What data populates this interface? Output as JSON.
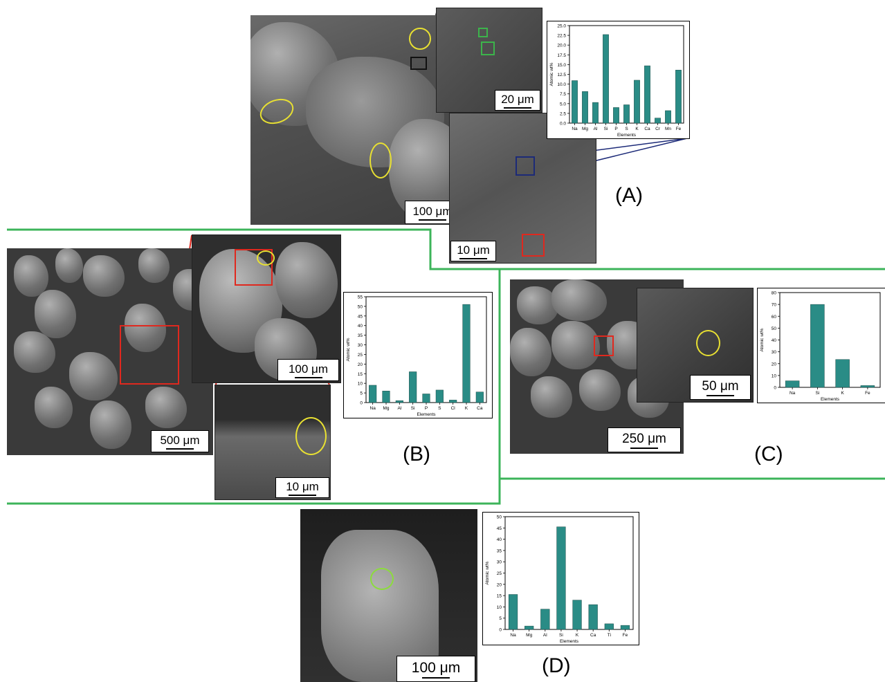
{
  "panels": {
    "a": {
      "label": "(A)",
      "scale_main": "100 μm",
      "scale_inset1": "20 μm",
      "scale_inset2": "10 μm"
    },
    "b": {
      "label": "(B)",
      "scale_main": "500 μm",
      "scale_inset1": "100 μm",
      "scale_inset2": "10 μm"
    },
    "c": {
      "label": "(C)",
      "scale_main": "250 μm",
      "scale_inset1": "50 μm"
    },
    "d": {
      "label": "(D)",
      "scale_main": "100 μm"
    }
  },
  "colors": {
    "bar": "#2a8c86",
    "divider": "#3cb45a",
    "highlight_yellow": "#e8e032",
    "highlight_red": "#e0281e"
  },
  "chart_data": [
    {
      "id": "A",
      "type": "bar",
      "categories": [
        "Na",
        "Mg",
        "Al",
        "Si",
        "P",
        "S",
        "K",
        "Ca",
        "Cr",
        "Mn",
        "Fe"
      ],
      "values": [
        10.9,
        8.1,
        5.3,
        22.7,
        4.0,
        4.7,
        11.0,
        14.7,
        1.3,
        3.2,
        13.6
      ],
      "xlabel": "Elements",
      "ylabel": "Atomic wt%",
      "ylim": [
        0,
        25
      ],
      "yticks": [
        0.0,
        2.5,
        5.0,
        7.5,
        10.0,
        12.5,
        15.0,
        17.5,
        20.0,
        22.5,
        25.0
      ],
      "ytick_labels": [
        "0.0",
        "2.5",
        "5.0",
        "7.5",
        "10.0",
        "12.5",
        "15.0",
        "17.5",
        "20.0",
        "22.5",
        "25.0"
      ]
    },
    {
      "id": "B",
      "type": "bar",
      "categories": [
        "Na",
        "Mg",
        "Al",
        "Si",
        "P",
        "S",
        "Cl",
        "K",
        "Ca"
      ],
      "values": [
        9,
        6,
        1,
        16,
        4.5,
        6.5,
        1.3,
        51,
        5.5
      ],
      "xlabel": "Elements",
      "ylabel": "Atomic wt%",
      "ylim": [
        0,
        55
      ],
      "yticks": [
        0,
        5,
        10,
        15,
        20,
        25,
        30,
        35,
        40,
        45,
        50,
        55
      ],
      "ytick_labels": [
        "0",
        "5",
        "10",
        "15",
        "20",
        "25",
        "30",
        "35",
        "40",
        "45",
        "50",
        "55"
      ]
    },
    {
      "id": "C",
      "type": "bar",
      "categories": [
        "Na",
        "Si",
        "K",
        "Fe"
      ],
      "values": [
        5.5,
        70,
        23.5,
        1.5
      ],
      "xlabel": "Elements",
      "ylabel": "Atomic wt%",
      "ylim": [
        0,
        80
      ],
      "yticks": [
        0,
        10,
        20,
        30,
        40,
        50,
        60,
        70,
        80
      ],
      "ytick_labels": [
        "0",
        "10",
        "20",
        "30",
        "40",
        "50",
        "60",
        "70",
        "80"
      ]
    },
    {
      "id": "D",
      "type": "bar",
      "categories": [
        "Na",
        "Mg",
        "Al",
        "Si",
        "K",
        "Ca",
        "Ti",
        "Fe"
      ],
      "values": [
        15.5,
        1.5,
        9,
        45.5,
        13,
        11,
        2.5,
        1.8
      ],
      "xlabel": "Elements",
      "ylabel": "Atomic wt%",
      "ylim": [
        0,
        50
      ],
      "yticks": [
        0,
        5,
        10,
        15,
        20,
        25,
        30,
        35,
        40,
        45,
        50
      ],
      "ytick_labels": [
        "0",
        "5",
        "10",
        "15",
        "20",
        "25",
        "30",
        "35",
        "40",
        "45",
        "50"
      ]
    }
  ]
}
